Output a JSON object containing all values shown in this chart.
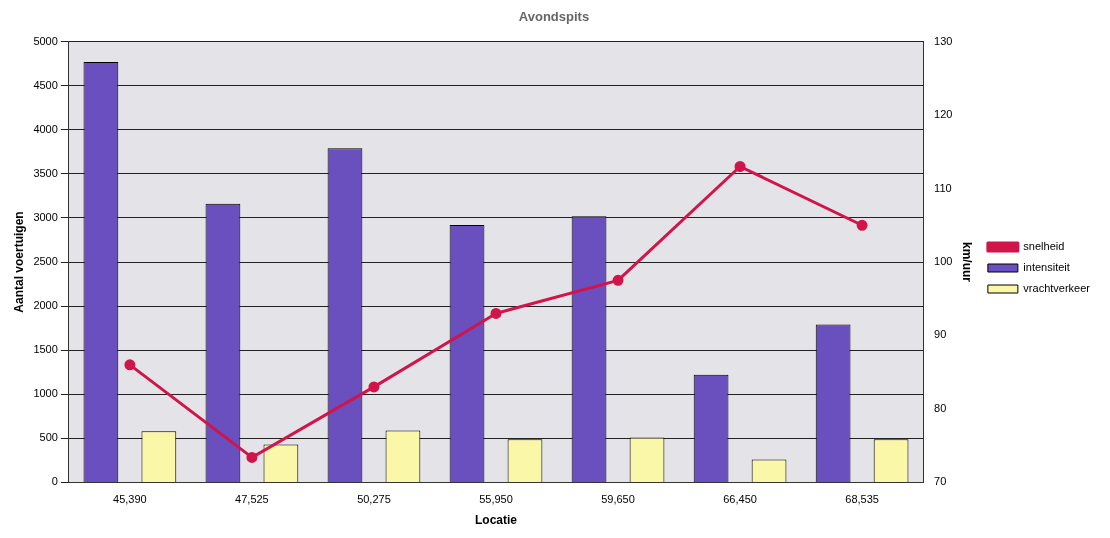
{
  "chart_data": {
    "type": "bar",
    "title": "Avondspits",
    "xlabel": "Locatie",
    "ylabel": "Aantal voertuigen",
    "y2label": "km/uur",
    "categories": [
      "45,390",
      "47,525",
      "50,275",
      "55,950",
      "59,650",
      "66,450",
      "68,535"
    ],
    "series": [
      {
        "name": "intensiteit",
        "color": "#6a4fbf",
        "values": [
          4770,
          3160,
          3790,
          2920,
          3020,
          1220,
          1790
        ]
      },
      {
        "name": "vrachtverkeer",
        "color": "#fbf7a8",
        "values": [
          580,
          430,
          590,
          490,
          510,
          260,
          490
        ]
      },
      {
        "name": "snelheid",
        "type": "line",
        "axis": "y2",
        "color": "#d1144a",
        "values": [
          86,
          73.4,
          83,
          93,
          97.5,
          113,
          105
        ]
      }
    ],
    "ylim": [
      0,
      5000
    ],
    "yticks": [
      0,
      500,
      1000,
      1500,
      2000,
      2500,
      3000,
      3500,
      4000,
      4500,
      5000
    ],
    "y2lim": [
      70,
      130
    ],
    "y2ticks": [
      70,
      80,
      90,
      100,
      110,
      120,
      130
    ],
    "grid": "y",
    "legend": "right",
    "marker": "circle"
  }
}
